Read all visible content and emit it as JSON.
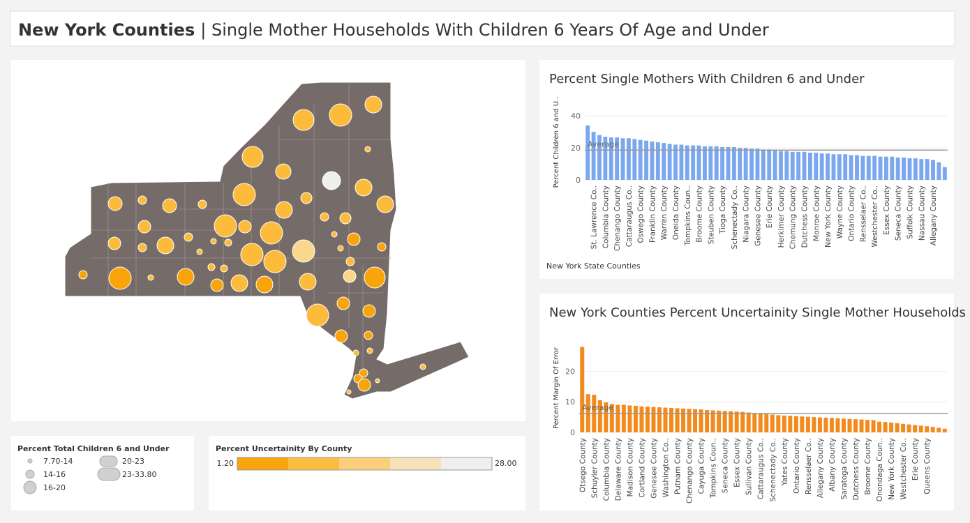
{
  "header": {
    "title_bold": "New York Counties",
    "title_rest": "| Single Mother Households With Children 6 Years Of Age and Under"
  },
  "size_legend": {
    "title": "Percent Total Children 6 and Under",
    "labels": [
      "7.70-14",
      "14-16",
      "16-20",
      "20-23",
      "23-33.80"
    ]
  },
  "color_legend": {
    "title": "Percent Uncertainity By County",
    "min": {
      "value": 1.2,
      "label": "1.20"
    },
    "max": {
      "value": 28,
      "label": "28.00"
    }
  },
  "chart_data": [
    {
      "type": "bar",
      "title": "Percent Single Mothers With Children 6 and Under",
      "y_label": "Percent Children 6 and U..",
      "x_label": "New York State Counties",
      "color": "#7ba7ef",
      "average": 18.6,
      "average_label": "Average",
      "ylim": [
        0,
        47
      ],
      "yticks": [
        0,
        20,
        40
      ],
      "grid": true,
      "categories": [
        null,
        "St. Lawrence Co..",
        null,
        "Columbia County",
        null,
        "Chenango County",
        null,
        "Cattaraugus Co..",
        null,
        "Oswego County",
        null,
        "Franklin County",
        null,
        "Warren County",
        null,
        "Oneida County",
        null,
        "Tompkins Coun..",
        null,
        "Broome County",
        null,
        "Steuben County",
        null,
        "Tioga County",
        null,
        "Schenectady Co..",
        null,
        "Niagara County",
        null,
        "Genesee County",
        null,
        "Erie County",
        null,
        "Herkimer County",
        null,
        "Chemung County",
        null,
        "Dutchess County",
        null,
        "Monroe County",
        null,
        "New York County",
        null,
        "Wayne County",
        null,
        "Ontario County",
        null,
        "Rensselaer Co..",
        null,
        "Westchester Co..",
        null,
        "Essex County",
        null,
        "Seneca County",
        null,
        "Suffolk County",
        null,
        "Nassau County",
        null,
        "Allegany County",
        null,
        null
      ],
      "values": [
        34,
        30,
        28,
        27,
        26.5,
        26.5,
        26,
        26,
        25.5,
        25,
        24.5,
        24,
        23.5,
        23,
        22.5,
        22,
        22,
        21.5,
        21.5,
        21.5,
        21,
        21,
        21,
        20.5,
        20.5,
        20.5,
        20,
        20,
        19.5,
        19.5,
        19,
        19,
        18.5,
        18,
        18,
        17.5,
        17.5,
        17.5,
        17,
        17,
        16.5,
        16.5,
        16,
        16,
        16,
        15.5,
        15.5,
        15,
        15,
        15,
        14.5,
        14.5,
        14.5,
        14,
        14,
        13.5,
        13.5,
        13,
        13,
        12.5,
        11,
        8
      ]
    },
    {
      "type": "bar",
      "title": "New York Counties Percent Uncertainity Single Mother Households",
      "y_label": "Percent Margin Of Error",
      "color": "#f28a1d",
      "average": 6.2,
      "average_label": "Average",
      "ylim": [
        0,
        29
      ],
      "yticks": [
        0,
        10,
        20
      ],
      "grid": true,
      "categories": [
        "Otsego County",
        null,
        "Schuyler County",
        null,
        "Columbia County",
        null,
        "Delaware County",
        null,
        "Madison County",
        null,
        "Cortland County",
        null,
        "Genesee County",
        null,
        "Washington Co..",
        null,
        "Putnam County",
        null,
        "Chenango County",
        null,
        "Cayuga County",
        null,
        "Tompkins Coun..",
        null,
        "Seneca County",
        null,
        "Essex County",
        null,
        "Sullivan County",
        null,
        "Cattaraugus Co..",
        null,
        "Schenectady Co..",
        null,
        "Yates County",
        null,
        "Ontario County",
        null,
        "Rensselaer Co..",
        null,
        "Allegany County",
        null,
        "Albany County",
        null,
        "Saratoga County",
        null,
        "Dutchess County",
        null,
        "Broome County",
        null,
        "Onondaga Coun..",
        null,
        "New York County",
        null,
        "Westchester Co..",
        null,
        "Erie County",
        null,
        "Queens County",
        null,
        null,
        null
      ],
      "values": [
        28,
        12.5,
        12.3,
        10.5,
        9.8,
        9.3,
        9,
        9,
        8.8,
        8.7,
        8.5,
        8.4,
        8.3,
        8.2,
        8.1,
        8,
        7.9,
        7.8,
        7.7,
        7.6,
        7.5,
        7.3,
        7.2,
        7.1,
        7,
        6.9,
        6.8,
        6.7,
        6.5,
        6.3,
        6.2,
        6,
        5.8,
        5.6,
        5.5,
        5.4,
        5.3,
        5.2,
        5.1,
        5,
        4.9,
        4.8,
        4.7,
        4.6,
        4.5,
        4.4,
        4.3,
        4.2,
        4.1,
        4,
        3.5,
        3.4,
        3.2,
        3,
        2.8,
        2.6,
        2.4,
        2.2,
        2,
        1.8,
        1.5,
        1.2
      ]
    }
  ]
}
